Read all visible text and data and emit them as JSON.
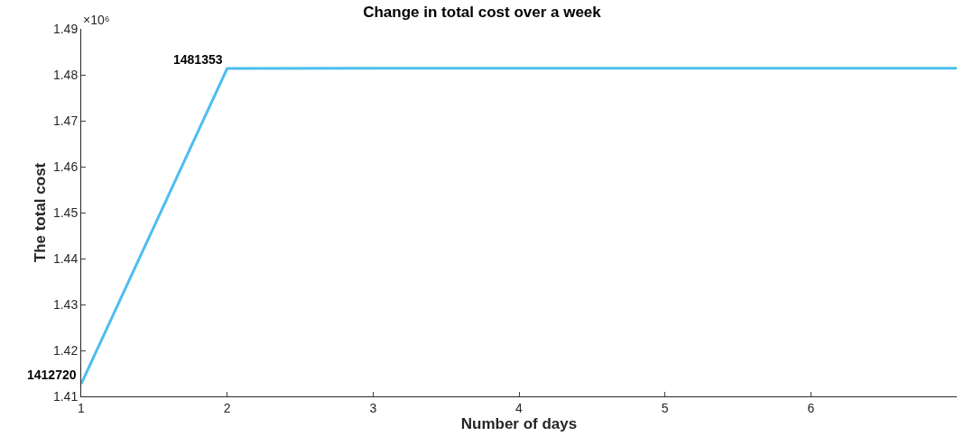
{
  "chart_data": {
    "type": "line",
    "title": "Change in total cost over a week",
    "xlabel": "Number of days",
    "ylabel": "The total cost",
    "x": [
      1,
      2,
      3,
      4,
      5,
      6,
      7
    ],
    "series": [
      {
        "color": "#4dbeee",
        "values": [
          1.41272,
          1.481353,
          1.4814,
          1.4814,
          1.4814,
          1.4814,
          1.4814
        ]
      }
    ],
    "xlim": [
      1,
      7
    ],
    "xticks": [
      1,
      2,
      3,
      4,
      5,
      6
    ],
    "ylim": [
      1.41,
      1.49
    ],
    "yticks": [
      1.41,
      1.42,
      1.43,
      1.44,
      1.45,
      1.46,
      1.47,
      1.48,
      1.49
    ],
    "annotations": [
      "×10⁶",
      {
        "text": "1412720",
        "x": 1,
        "y": 1.41272
      },
      {
        "text": "1481353",
        "x": 2,
        "y": 1.481353
      }
    ],
    "legend": false,
    "marker": "none",
    "line_style": "solid"
  }
}
